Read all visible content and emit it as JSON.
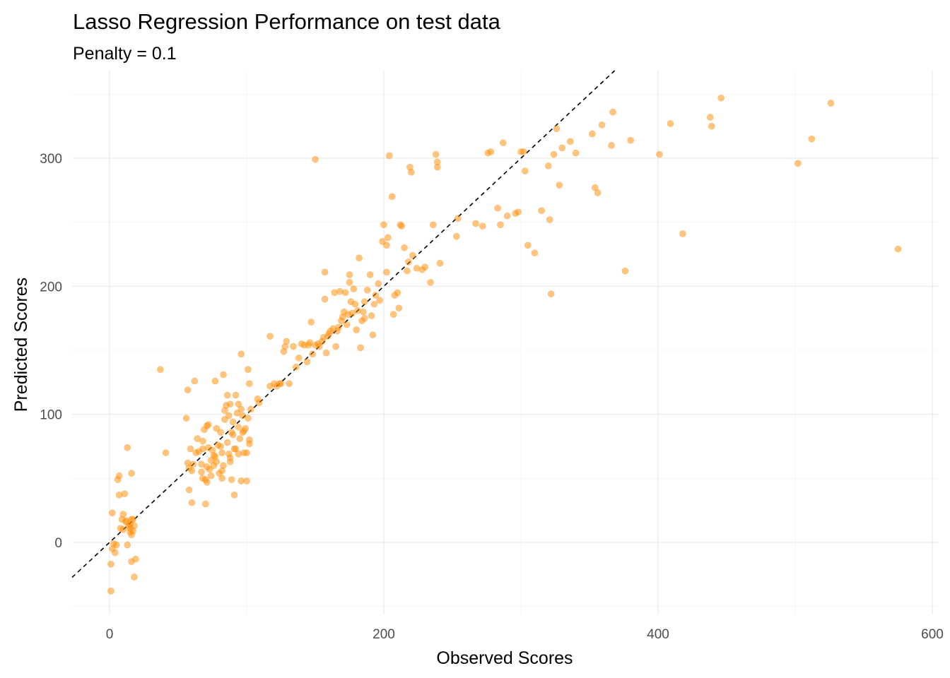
{
  "chart_data": {
    "type": "scatter",
    "title": "Lasso Regression Performance on test data",
    "subtitle": "Penalty = 0.1",
    "xlabel": "Observed Scores",
    "ylabel": "Predicted Scores",
    "xlim": [
      -27,
      605
    ],
    "ylim": [
      -50,
      370
    ],
    "x_ticks": [
      {
        "value": 0,
        "label": "0"
      },
      {
        "value": 200,
        "label": "200"
      },
      {
        "value": 400,
        "label": "400"
      },
      {
        "value": 600,
        "label": "600"
      }
    ],
    "y_ticks": [
      {
        "value": 0,
        "label": "0"
      },
      {
        "value": 100,
        "label": "100"
      },
      {
        "value": 200,
        "label": "200"
      },
      {
        "value": 300,
        "label": "300"
      }
    ],
    "x_minor_ticks": [
      100,
      300,
      500
    ],
    "y_minor_ticks": [
      -50,
      50,
      150,
      250,
      350
    ],
    "grid": true,
    "legend": "none",
    "point_color": "#ff8c00",
    "point_opacity": 0.5,
    "reference_line": {
      "slope": 1,
      "intercept": 0,
      "style": "dashed",
      "color": "#000000"
    },
    "points": [
      [
        1,
        -38
      ],
      [
        1,
        -17
      ],
      [
        2,
        -5
      ],
      [
        3,
        -1
      ],
      [
        4,
        -8
      ],
      [
        2,
        23
      ],
      [
        5,
        -2
      ],
      [
        6,
        49
      ],
      [
        7,
        52
      ],
      [
        7,
        37
      ],
      [
        8,
        11
      ],
      [
        9,
        18
      ],
      [
        10,
        10
      ],
      [
        10,
        22
      ],
      [
        11,
        38
      ],
      [
        12,
        16
      ],
      [
        12,
        17
      ],
      [
        13,
        74
      ],
      [
        13,
        -2
      ],
      [
        14,
        13
      ],
      [
        15,
        11
      ],
      [
        15,
        8
      ],
      [
        16,
        6
      ],
      [
        16,
        18
      ],
      [
        16,
        54
      ],
      [
        16,
        -15
      ],
      [
        17,
        9
      ],
      [
        17,
        18
      ],
      [
        18,
        -27
      ],
      [
        18,
        13
      ],
      [
        19,
        -13
      ],
      [
        15,
        14
      ],
      [
        37,
        135
      ],
      [
        41,
        70
      ],
      [
        56,
        97
      ],
      [
        57,
        119
      ],
      [
        57,
        62
      ],
      [
        58,
        41
      ],
      [
        58,
        58
      ],
      [
        59,
        73
      ],
      [
        60,
        56
      ],
      [
        60,
        31
      ],
      [
        61,
        61
      ],
      [
        62,
        126
      ],
      [
        63,
        70
      ],
      [
        64,
        81
      ],
      [
        65,
        71
      ],
      [
        67,
        61
      ],
      [
        67,
        55
      ],
      [
        68,
        73
      ],
      [
        68,
        50
      ],
      [
        68,
        79
      ],
      [
        69,
        88
      ],
      [
        70,
        49
      ],
      [
        70,
        30
      ],
      [
        71,
        59
      ],
      [
        71,
        91
      ],
      [
        71,
        47
      ],
      [
        72,
        74
      ],
      [
        72,
        92
      ],
      [
        73,
        57
      ],
      [
        74,
        52
      ],
      [
        74,
        64
      ],
      [
        75,
        72
      ],
      [
        76,
        60
      ],
      [
        76,
        68
      ],
      [
        77,
        126
      ],
      [
        77,
        67
      ],
      [
        78,
        89
      ],
      [
        78,
        63
      ],
      [
        79,
        76
      ],
      [
        80,
        54
      ],
      [
        81,
        86
      ],
      [
        81,
        75
      ],
      [
        82,
        70
      ],
      [
        82,
        56
      ],
      [
        82,
        50
      ],
      [
        83,
        131
      ],
      [
        83,
        60
      ],
      [
        84,
        96
      ],
      [
        84,
        103
      ],
      [
        85,
        107
      ],
      [
        86,
        115
      ],
      [
        86,
        78
      ],
      [
        87,
        69
      ],
      [
        87,
        99
      ],
      [
        88,
        108
      ],
      [
        88,
        66
      ],
      [
        88,
        63
      ],
      [
        89,
        86
      ],
      [
        89,
        49
      ],
      [
        90,
        84
      ],
      [
        90,
        94
      ],
      [
        91,
        37
      ],
      [
        91,
        73
      ],
      [
        92,
        115
      ],
      [
        92,
        73
      ],
      [
        93,
        101
      ],
      [
        94,
        69
      ],
      [
        94,
        90
      ],
      [
        94,
        108
      ],
      [
        95,
        81
      ],
      [
        96,
        147
      ],
      [
        96,
        104
      ],
      [
        96,
        48
      ],
      [
        97,
        86
      ],
      [
        97,
        99
      ],
      [
        98,
        87
      ],
      [
        98,
        70
      ],
      [
        99,
        89
      ],
      [
        100,
        48
      ],
      [
        100,
        70
      ],
      [
        101,
        97
      ],
      [
        101,
        135
      ],
      [
        102,
        77
      ],
      [
        102,
        124
      ],
      [
        102,
        80
      ],
      [
        103,
        104
      ],
      [
        108,
        112
      ],
      [
        109,
        109
      ],
      [
        117,
        122
      ],
      [
        117,
        161
      ],
      [
        120,
        124
      ],
      [
        122,
        122
      ],
      [
        124,
        124
      ],
      [
        125,
        124
      ],
      [
        127,
        149
      ],
      [
        128,
        153
      ],
      [
        129,
        157
      ],
      [
        131,
        124
      ],
      [
        134,
        153
      ],
      [
        136,
        137
      ],
      [
        138,
        144
      ],
      [
        140,
        155
      ],
      [
        142,
        154
      ],
      [
        144,
        141
      ],
      [
        145,
        154
      ],
      [
        146,
        156
      ],
      [
        147,
        172
      ],
      [
        148,
        147
      ],
      [
        150,
        299
      ],
      [
        150,
        154
      ],
      [
        152,
        155
      ],
      [
        153,
        153
      ],
      [
        155,
        157
      ],
      [
        156,
        160
      ],
      [
        157,
        190
      ],
      [
        157,
        211
      ],
      [
        158,
        148
      ],
      [
        159,
        161
      ],
      [
        160,
        163
      ],
      [
        161,
        165
      ],
      [
        163,
        167
      ],
      [
        164,
        195
      ],
      [
        165,
        153
      ],
      [
        166,
        165
      ],
      [
        167,
        168
      ],
      [
        168,
        196
      ],
      [
        169,
        173
      ],
      [
        170,
        176
      ],
      [
        171,
        180
      ],
      [
        172,
        195
      ],
      [
        173,
        170
      ],
      [
        174,
        178
      ],
      [
        175,
        203
      ],
      [
        175,
        209
      ],
      [
        176,
        188
      ],
      [
        177,
        179
      ],
      [
        178,
        198
      ],
      [
        179,
        186
      ],
      [
        180,
        166
      ],
      [
        181,
        181
      ],
      [
        182,
        222
      ],
      [
        183,
        152
      ],
      [
        184,
        173
      ],
      [
        185,
        180
      ],
      [
        186,
        175
      ],
      [
        186,
        188
      ],
      [
        188,
        197
      ],
      [
        190,
        209
      ],
      [
        191,
        177
      ],
      [
        192,
        162
      ],
      [
        193,
        186
      ],
      [
        194,
        193
      ],
      [
        196,
        202
      ],
      [
        197,
        189
      ],
      [
        199,
        235
      ],
      [
        200,
        248
      ],
      [
        202,
        232
      ],
      [
        202,
        211
      ],
      [
        203,
        238
      ],
      [
        204,
        302
      ],
      [
        206,
        270
      ],
      [
        207,
        178
      ],
      [
        208,
        193
      ],
      [
        210,
        195
      ],
      [
        211,
        183
      ],
      [
        212,
        248
      ],
      [
        213,
        247
      ],
      [
        215,
        230
      ],
      [
        217,
        212
      ],
      [
        218,
        219
      ],
      [
        219,
        293
      ],
      [
        220,
        289
      ],
      [
        221,
        224
      ],
      [
        224,
        214
      ],
      [
        228,
        213
      ],
      [
        230,
        215
      ],
      [
        234,
        203
      ],
      [
        236,
        248
      ],
      [
        238,
        303
      ],
      [
        239,
        297
      ],
      [
        239,
        293
      ],
      [
        241,
        218
      ],
      [
        253,
        239
      ],
      [
        254,
        253
      ],
      [
        267,
        249
      ],
      [
        272,
        247
      ],
      [
        276,
        304
      ],
      [
        278,
        305
      ],
      [
        283,
        261
      ],
      [
        285,
        248
      ],
      [
        287,
        312
      ],
      [
        290,
        255
      ],
      [
        296,
        257
      ],
      [
        298,
        258
      ],
      [
        300,
        305
      ],
      [
        302,
        305
      ],
      [
        303,
        290
      ],
      [
        305,
        232
      ],
      [
        310,
        226
      ],
      [
        315,
        259
      ],
      [
        320,
        294
      ],
      [
        321,
        252
      ],
      [
        322,
        194
      ],
      [
        324,
        303
      ],
      [
        326,
        323
      ],
      [
        328,
        279
      ],
      [
        330,
        308
      ],
      [
        336,
        313
      ],
      [
        340,
        304
      ],
      [
        352,
        319
      ],
      [
        354,
        277
      ],
      [
        356,
        273
      ],
      [
        359,
        326
      ],
      [
        366,
        310
      ],
      [
        367,
        336
      ],
      [
        376,
        212
      ],
      [
        380,
        314
      ],
      [
        401,
        303
      ],
      [
        409,
        327
      ],
      [
        418,
        241
      ],
      [
        438,
        332
      ],
      [
        439,
        325
      ],
      [
        446,
        347
      ],
      [
        502,
        296
      ],
      [
        512,
        315
      ],
      [
        526,
        343
      ],
      [
        575,
        229
      ]
    ]
  }
}
